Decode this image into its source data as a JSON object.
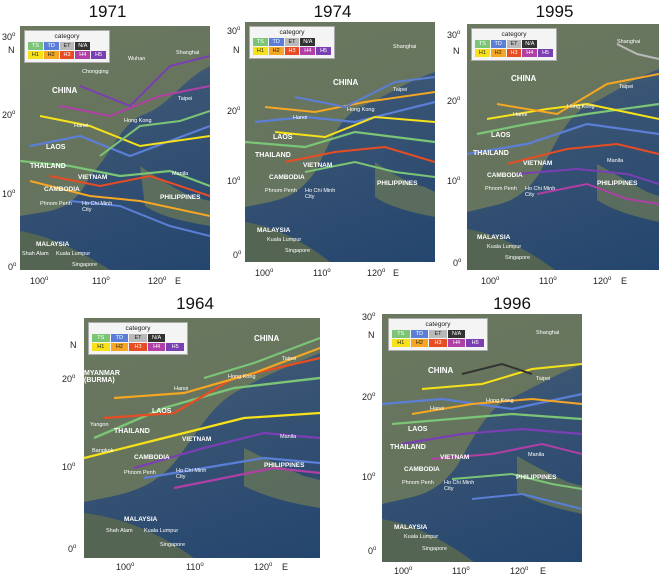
{
  "legend": {
    "title": "category",
    "items": [
      {
        "label": "TS",
        "color": "#7cc576"
      },
      {
        "label": "TD",
        "color": "#5b7fd6"
      },
      {
        "label": "ET",
        "color": "#b9b9b9"
      },
      {
        "label": "N/A",
        "color": "#333333"
      },
      {
        "label": "",
        "color": "transparent"
      },
      {
        "label": "H1",
        "color": "#f7e21a"
      },
      {
        "label": "H2",
        "color": "#f5a623"
      },
      {
        "label": "H3",
        "color": "#e84c23"
      },
      {
        "label": "H4",
        "color": "#b03fa6"
      },
      {
        "label": "H5",
        "color": "#7a3fb3"
      }
    ]
  },
  "axis": {
    "north": "N",
    "east": "E"
  },
  "panels": [
    {
      "year": "1971",
      "lat_ticks": [
        "30",
        "20",
        "10",
        "0"
      ],
      "lon_ticks": [
        "100",
        "110",
        "120"
      ],
      "places": [
        "Shanghai",
        "Wuhan",
        "Chongqing",
        "CHINA",
        "Taipei",
        "Hong Kong",
        "Hanoi",
        "LAOS",
        "THAILAND",
        "VIETNAM",
        "Manila",
        "CAMBODIA",
        "PHILIPPINES",
        "Phnom Penh",
        "Ho Chi Minh City",
        "MALAYSIA",
        "Shah Alam",
        "Kuala Lumpur",
        "Singapore"
      ]
    },
    {
      "year": "1974",
      "lat_ticks": [
        "30",
        "20",
        "10",
        "0"
      ],
      "lon_ticks": [
        "100",
        "110",
        "120"
      ],
      "places": [
        "Shanghai",
        "CHINA",
        "Taipei",
        "Hong Kong",
        "Hanoi",
        "LAOS",
        "THAILAND",
        "VIETNAM",
        "CAMBODIA",
        "PHILIPPINES",
        "Phnom Penh",
        "Ho Chi Minh City",
        "MALAYSIA",
        "Kuala Lumpur",
        "Singapore"
      ]
    },
    {
      "year": "1995",
      "lat_ticks": [
        "30",
        "20",
        "10",
        "0"
      ],
      "lon_ticks": [
        "100",
        "110",
        "120"
      ],
      "places": [
        "Shanghai",
        "CHINA",
        "Taipei",
        "Hong Kong",
        "Hanoi",
        "LAOS",
        "THAILAND",
        "VIETNAM",
        "Manila",
        "CAMBODIA",
        "PHILIPPINES",
        "Phnom Penh",
        "Ho Chi Minh City",
        "MALAYSIA",
        "Kuala Lumpur",
        "Singapore"
      ]
    },
    {
      "year": "1964",
      "lat_ticks": [
        "20",
        "10",
        "0"
      ],
      "lon_ticks": [
        "100",
        "110",
        "120"
      ],
      "places": [
        "CHINA",
        "Taipei",
        "Hong Kong",
        "MYANMAR (BURMA)",
        "Hanoi",
        "LAOS",
        "Yangon",
        "THAILAND",
        "VIETNAM",
        "Bangkok",
        "CAMBODIA",
        "Manila",
        "PHILIPPINES",
        "Phnom Penh",
        "Ho Chi Minh City",
        "MALAYSIA",
        "Shah Alam",
        "Kuala Lumpur",
        "Singapore"
      ]
    },
    {
      "year": "1996",
      "lat_ticks": [
        "30",
        "20",
        "10",
        "0"
      ],
      "lon_ticks": [
        "100",
        "110",
        "120"
      ],
      "places": [
        "Shanghai",
        "CHINA",
        "Taipei",
        "Hong Kong",
        "Hanoi",
        "LAOS",
        "THAILAND",
        "VIETNAM",
        "Manila",
        "CAMBODIA",
        "PHILIPPINES",
        "Phnom Penh",
        "Ho Chi Minh City",
        "MALAYSIA",
        "Kuala Lumpur",
        "Singapore"
      ]
    }
  ]
}
